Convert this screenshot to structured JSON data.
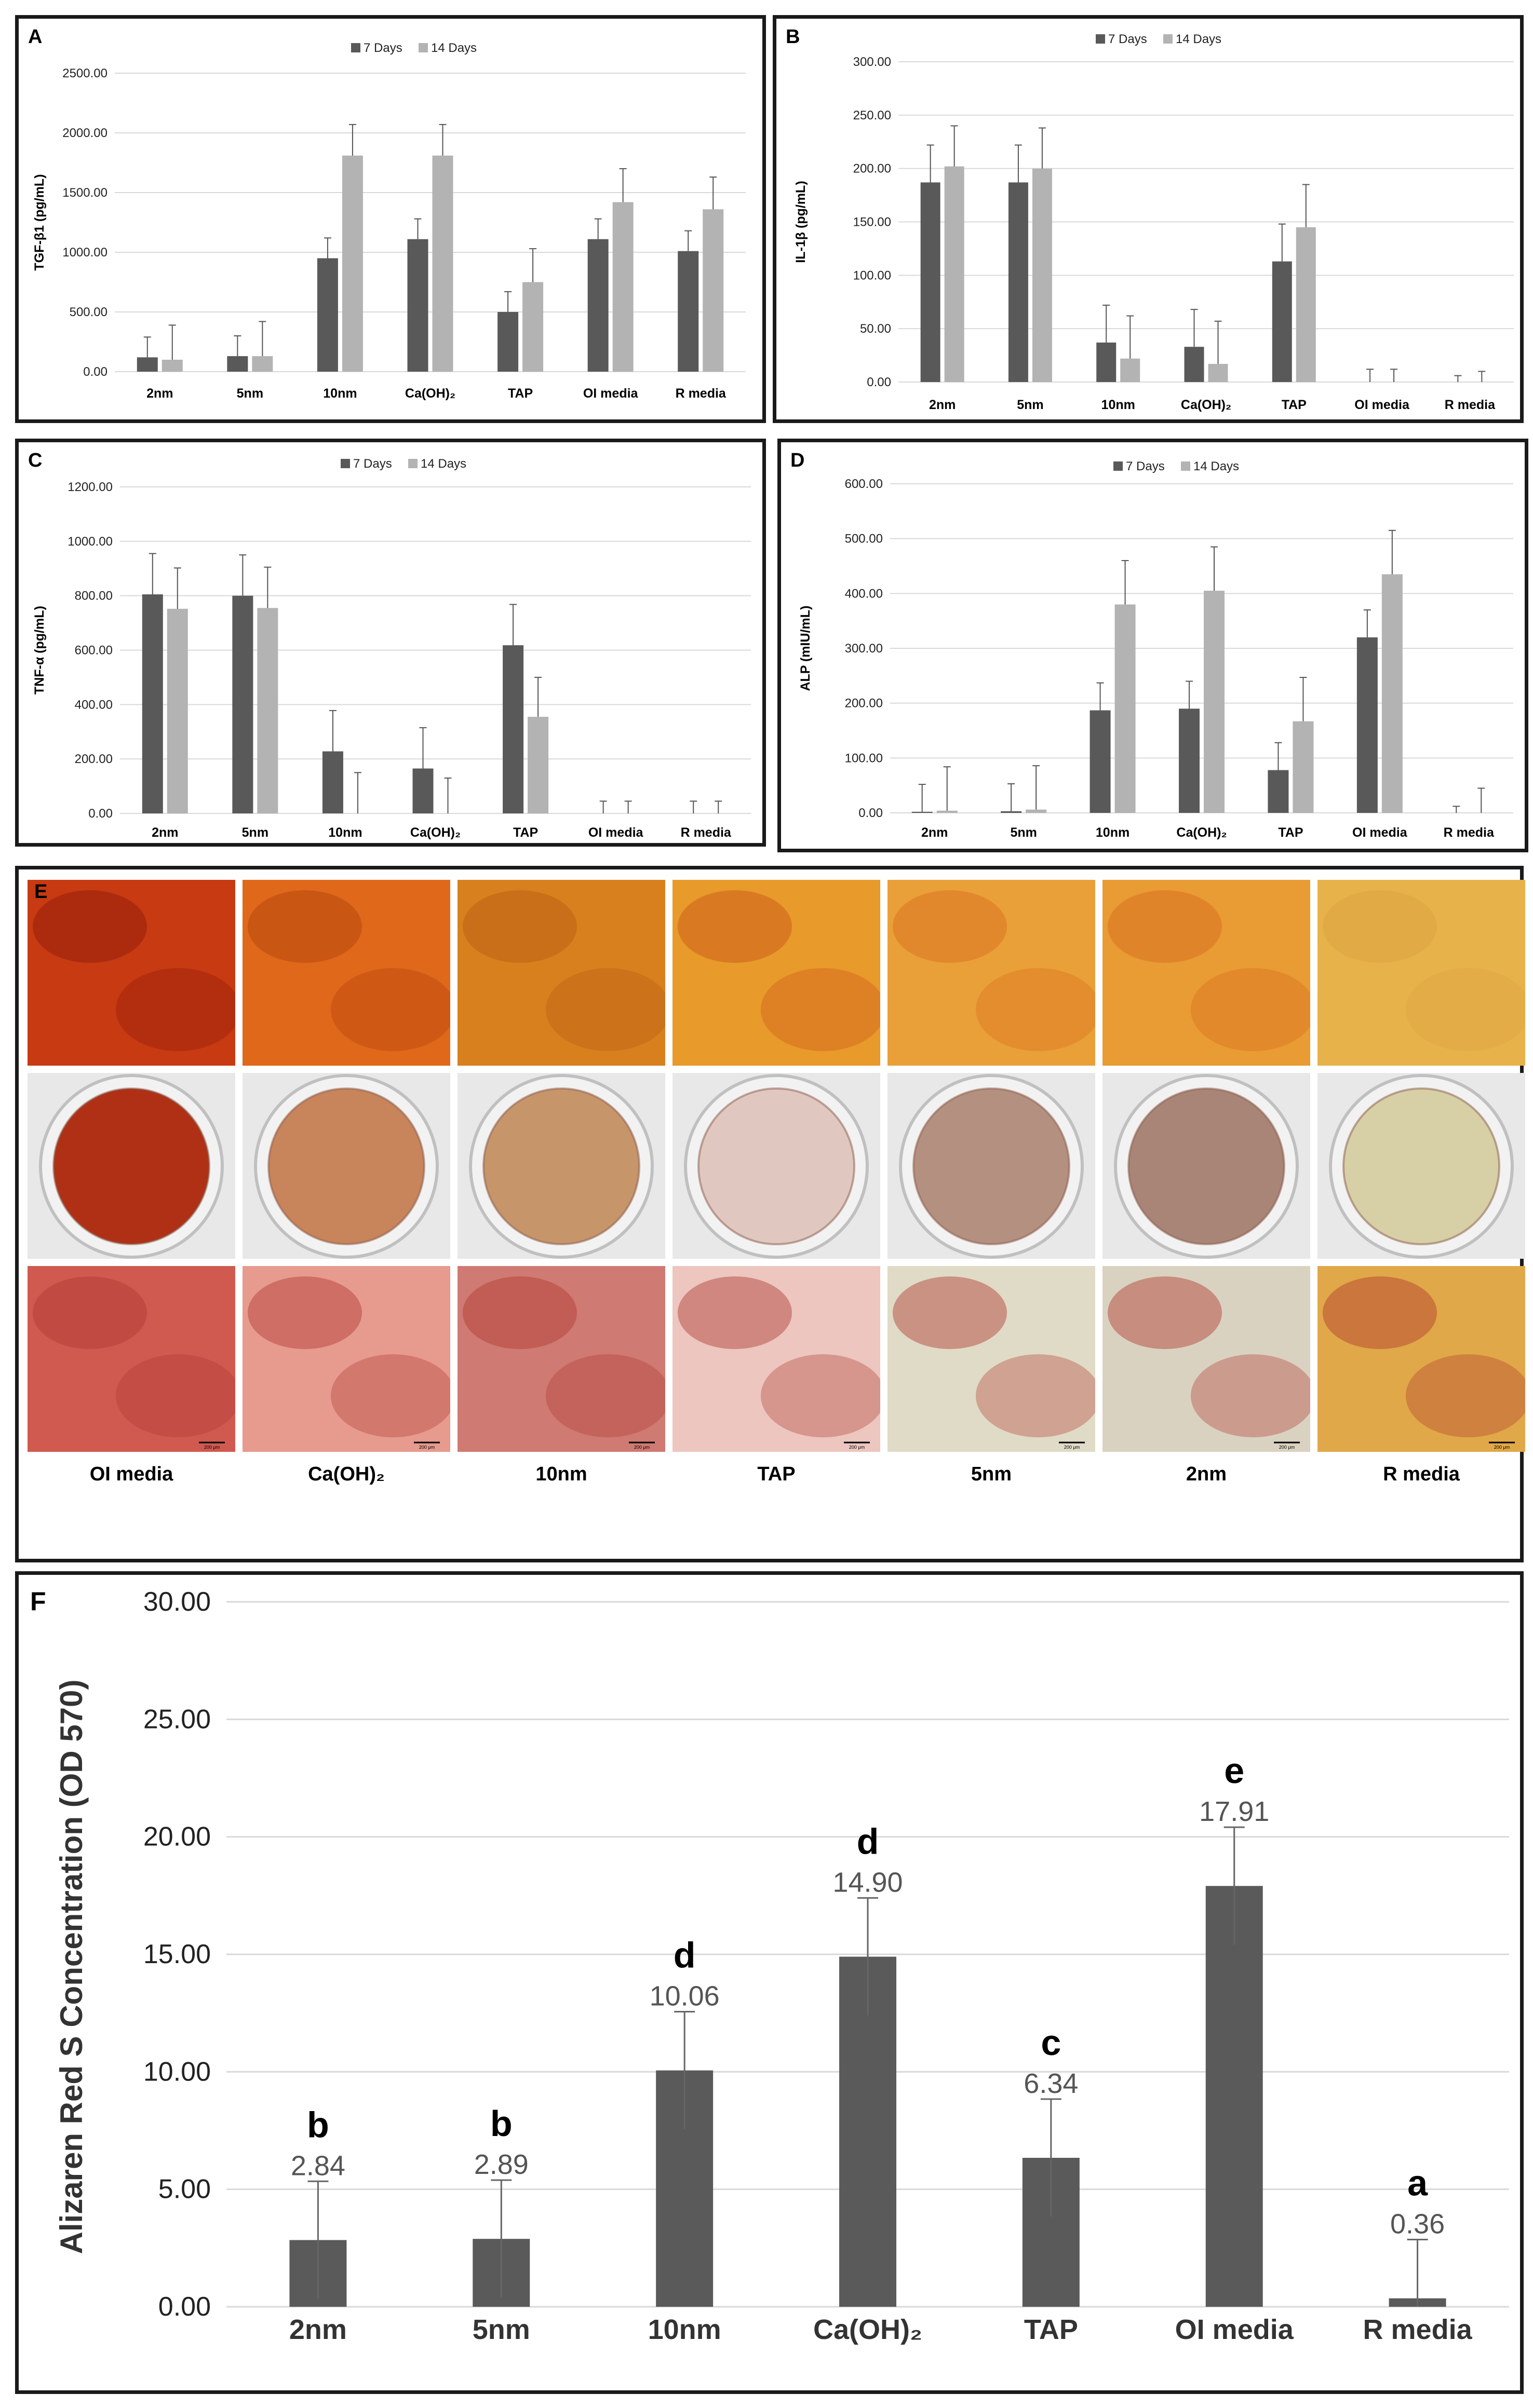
{
  "colors": {
    "day7": "#595959",
    "day14": "#b3b3b3",
    "single": "#5a5a5a",
    "grid": "#d9d9d9"
  },
  "panel_labels": {
    "a": "A",
    "b": "B",
    "c": "C",
    "d": "D",
    "e": "E",
    "f": "F"
  },
  "chart_data": [
    {
      "id": "A",
      "type": "bar",
      "ylabel": "TGF-β1 (pg/mL)",
      "categories": [
        "2nm",
        "5nm",
        "10nm",
        "Ca(OH)₂",
        "TAP",
        "OI media",
        "R media"
      ],
      "ylim": [
        0,
        2500
      ],
      "yticks": [
        "0.00",
        "500.00",
        "1000.00",
        "1500.00",
        "2000.00",
        "2500.00"
      ],
      "legend": "top-center",
      "series": [
        {
          "name": "7 Days",
          "values": [
            120,
            130,
            950,
            1110,
            500,
            1110,
            1010
          ],
          "errors": [
            170,
            170,
            170,
            170,
            170,
            170,
            170
          ]
        },
        {
          "name": "14 Days",
          "values": [
            100,
            130,
            1810,
            1810,
            750,
            1420,
            1360
          ],
          "errors": [
            290,
            290,
            260,
            260,
            280,
            280,
            270
          ]
        }
      ]
    },
    {
      "id": "B",
      "type": "bar",
      "ylabel": "IL-1β (pg/mL)",
      "categories": [
        "2nm",
        "5nm",
        "10nm",
        "Ca(OH)₂",
        "TAP",
        "OI media",
        "R media"
      ],
      "ylim": [
        0,
        300
      ],
      "yticks": [
        "0.00",
        "50.00",
        "100.00",
        "150.00",
        "200.00",
        "250.00",
        "300.00"
      ],
      "legend": "top-center",
      "series": [
        {
          "name": "7 Days",
          "values": [
            187,
            187,
            37,
            33,
            113,
            0,
            0
          ],
          "errors": [
            35,
            35,
            35,
            35,
            35,
            12,
            6
          ]
        },
        {
          "name": "14 Days",
          "values": [
            202,
            200,
            22,
            17,
            145,
            0,
            0
          ],
          "errors": [
            38,
            38,
            40,
            40,
            40,
            12,
            10
          ]
        }
      ]
    },
    {
      "id": "C",
      "type": "bar",
      "ylabel": "TNF-α (pg/mL)",
      "categories": [
        "2nm",
        "5nm",
        "10nm",
        "Ca(OH)₂",
        "TAP",
        "OI media",
        "R media"
      ],
      "ylim": [
        0,
        1200
      ],
      "yticks": [
        "0.00",
        "200.00",
        "400.00",
        "600.00",
        "800.00",
        "1000.00",
        "1200.00"
      ],
      "legend": "top-center",
      "series": [
        {
          "name": "7 Days",
          "values": [
            805,
            800,
            228,
            165,
            618,
            0,
            0
          ],
          "errors": [
            150,
            150,
            150,
            150,
            150,
            45,
            45
          ]
        },
        {
          "name": "14 Days",
          "values": [
            752,
            755,
            0,
            0,
            355,
            0,
            0
          ],
          "errors": [
            150,
            150,
            150,
            130,
            145,
            45,
            45
          ]
        }
      ]
    },
    {
      "id": "D",
      "type": "bar",
      "ylabel": "ALP (mIU/mL)",
      "categories": [
        "2nm",
        "5nm",
        "10nm",
        "Ca(OH)₂",
        "TAP",
        "OI media",
        "R media"
      ],
      "ylim": [
        0,
        600
      ],
      "yticks": [
        "0.00",
        "100.00",
        "200.00",
        "300.00",
        "400.00",
        "500.00",
        "600.00"
      ],
      "legend": "top-center",
      "series": [
        {
          "name": "7 Days",
          "values": [
            2,
            3,
            187,
            190,
            78,
            320,
            0
          ],
          "errors": [
            50,
            50,
            50,
            50,
            50,
            50,
            12
          ]
        },
        {
          "name": "14 Days",
          "values": [
            4,
            6,
            380,
            405,
            167,
            435,
            0
          ],
          "errors": [
            80,
            80,
            80,
            80,
            80,
            80,
            45
          ]
        }
      ]
    },
    {
      "id": "F",
      "type": "bar",
      "ylabel": "Alizaren Red S Concentration (OD 570)",
      "categories": [
        "2nm",
        "5nm",
        "10nm",
        "Ca(OH)₂",
        "TAP",
        "OI media",
        "R media"
      ],
      "ylim": [
        0,
        30
      ],
      "yticks": [
        "0.00",
        "5.00",
        "10.00",
        "15.00",
        "20.00",
        "25.00",
        "30.00"
      ],
      "values": [
        2.84,
        2.89,
        10.06,
        14.9,
        6.34,
        17.91,
        0.36
      ],
      "value_labels": [
        "2.84",
        "2.89",
        "10.06",
        "14.90",
        "6.34",
        "17.91",
        "0.36"
      ],
      "errors": [
        2.5,
        2.5,
        2.5,
        2.5,
        2.5,
        2.5,
        2.5
      ],
      "significance": [
        "b",
        "b",
        "d",
        "d",
        "c",
        "e",
        "a"
      ]
    }
  ],
  "panel_e": {
    "captions": [
      "OI media",
      "Ca(OH)₂",
      "10nm",
      "TAP",
      "5nm",
      "2nm",
      "R media"
    ],
    "rows": [
      "micro-low",
      "well",
      "micro-high"
    ],
    "scale_bar": "200 μm"
  }
}
